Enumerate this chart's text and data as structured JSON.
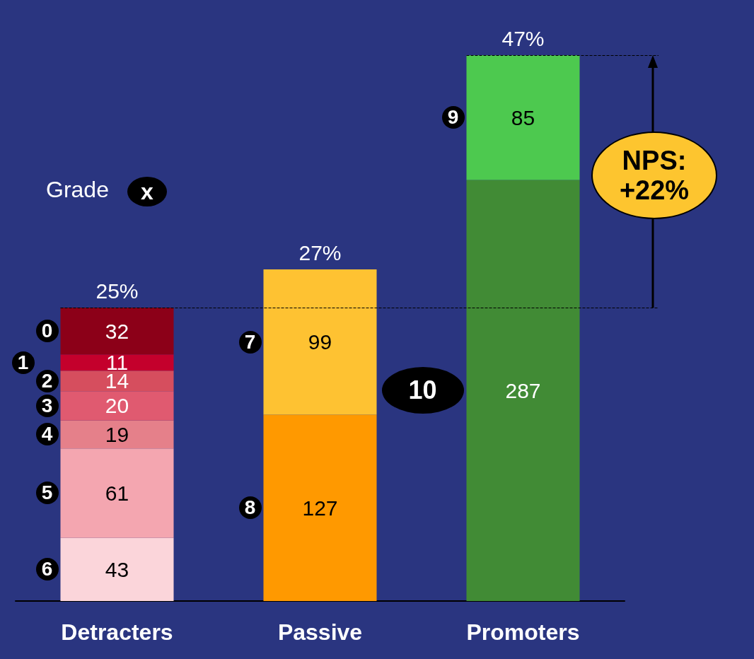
{
  "chart_data": {
    "type": "bar",
    "stacked": true,
    "data_labels": true,
    "categories": [
      "Detracters",
      "Passive",
      "Promoters"
    ],
    "series": [
      {
        "name": "6",
        "color": "#fbd5da",
        "values": [
          43,
          null,
          null
        ]
      },
      {
        "name": "5",
        "color": "#f4a6b0",
        "values": [
          61,
          null,
          null
        ]
      },
      {
        "name": "4",
        "color": "#e5808a",
        "values": [
          19,
          null,
          null
        ]
      },
      {
        "name": "3",
        "color": "#e05a70",
        "values": [
          20,
          null,
          null
        ]
      },
      {
        "name": "2",
        "color": "#d64e5e",
        "values": [
          14,
          null,
          null
        ]
      },
      {
        "name": "1",
        "color": "#c4002c",
        "values": [
          11,
          null,
          null
        ]
      },
      {
        "name": "0",
        "color": "#8c0018",
        "values": [
          32,
          null,
          null
        ]
      },
      {
        "name": "8",
        "color": "#ff9900",
        "values": [
          null,
          127,
          null
        ]
      },
      {
        "name": "7",
        "color": "#fec232",
        "values": [
          null,
          99,
          null
        ]
      },
      {
        "name": "10",
        "color": "#418b35",
        "values": [
          null,
          null,
          287
        ]
      },
      {
        "name": "9",
        "color": "#4dc94f",
        "values": [
          null,
          null,
          85
        ]
      }
    ],
    "ref_lines": [
      {
        "axis": "y",
        "value": 200,
        "line_style": "dashed",
        "color": "#000000"
      },
      {
        "axis": "y",
        "value": 372,
        "line_style": "dashed",
        "color": "#000000"
      }
    ],
    "annotations": [
      "Grade",
      "x",
      "NPS:\n+22%",
      {
        "text": "25%",
        "x": "Detracters",
        "y": 200
      },
      {
        "text": "27%",
        "x": "Passive",
        "y": 226
      },
      {
        "text": "47%",
        "x": "Promoters",
        "y": 372
      }
    ],
    "legend": false,
    "grid": false
  }
}
